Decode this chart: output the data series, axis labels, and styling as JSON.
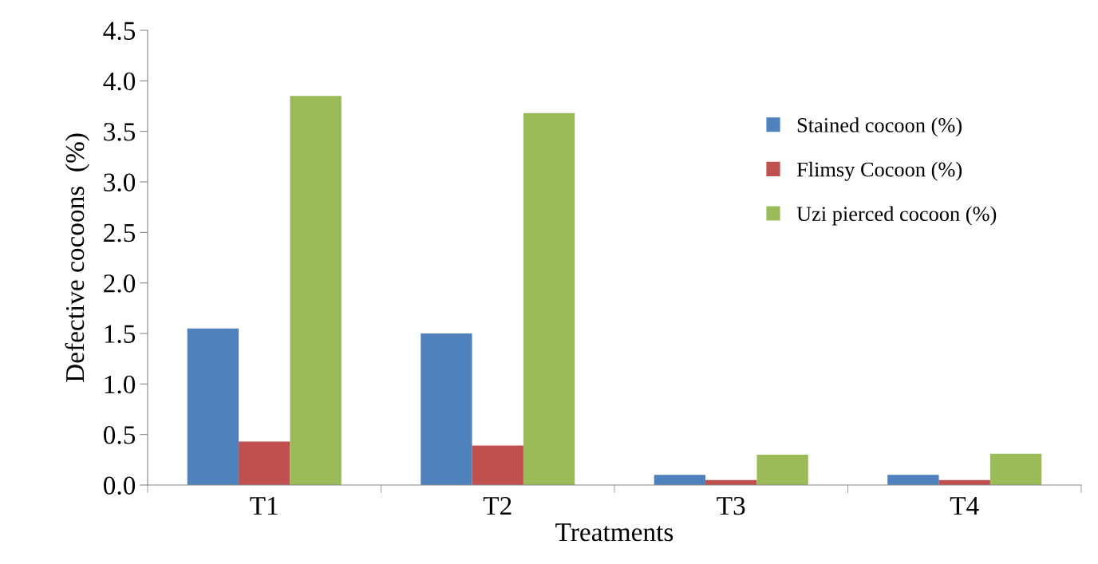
{
  "chart_data": {
    "type": "bar",
    "xlabel": "Treatments",
    "ylabel": "Defective cocoons  (%)",
    "categories": [
      "T1",
      "T2",
      "T3",
      "T4"
    ],
    "series": [
      {
        "name": "Stained cocoon (%)",
        "color": "#4f81bd",
        "values": [
          1.55,
          1.5,
          0.1,
          0.1
        ]
      },
      {
        "name": "Flimsy Cocoon (%)",
        "color": "#c0504d",
        "values": [
          0.43,
          0.39,
          0.05,
          0.05
        ]
      },
      {
        "name": "Uzi pierced cocoon (%)",
        "color": "#9bbb59",
        "values": [
          3.85,
          3.68,
          0.3,
          0.31
        ]
      }
    ],
    "ylim": [
      0,
      4.5
    ],
    "yticks": [
      {
        "value": 0,
        "label": "0.0"
      },
      {
        "value": 0.5,
        "label": "0.5"
      },
      {
        "value": 1,
        "label": "1.0"
      },
      {
        "value": 1.5,
        "label": "1.5"
      },
      {
        "value": 2,
        "label": "2.0"
      },
      {
        "value": 2.5,
        "label": "2.5"
      },
      {
        "value": 3,
        "label": "3.0"
      },
      {
        "value": 3.5,
        "label": "3.5"
      },
      {
        "value": 4,
        "label": "4.0"
      },
      {
        "value": 4.5,
        "label": "4.5"
      }
    ],
    "grid": false,
    "legend": "top right"
  }
}
